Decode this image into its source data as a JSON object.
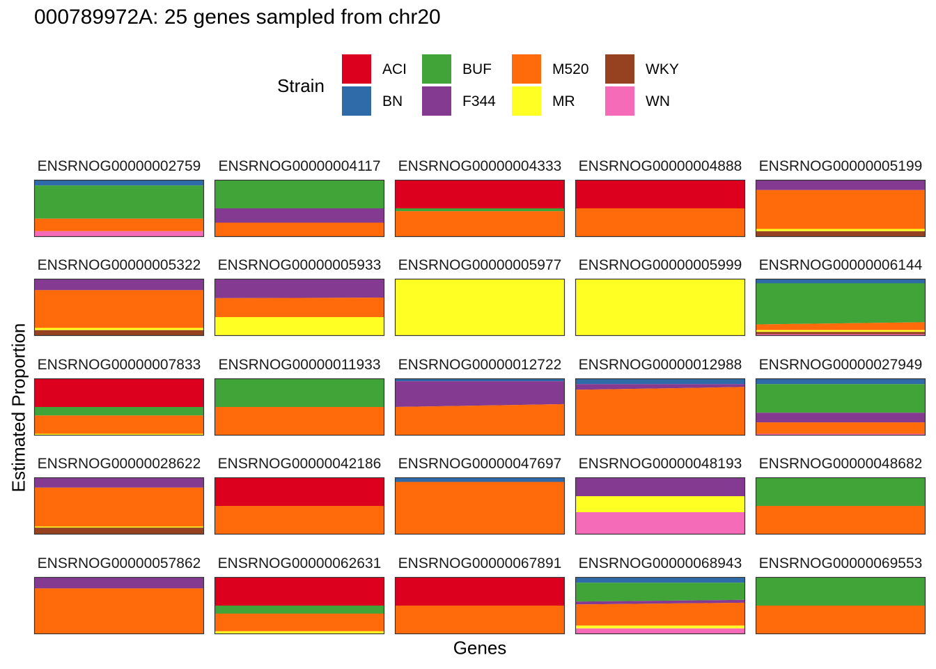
{
  "chart_data": {
    "type": "area",
    "title": "000789972A: 25 genes sampled from chr20",
    "xlabel": "Genes",
    "ylabel": "Estimated Proportion",
    "legend": {
      "title": "Strain",
      "position": "top",
      "entries": [
        {
          "name": "ACI",
          "color": "#DC001E"
        },
        {
          "name": "BN",
          "color": "#2E6BA8"
        },
        {
          "name": "BUF",
          "color": "#41A438"
        },
        {
          "name": "F344",
          "color": "#853A92"
        },
        {
          "name": "M520",
          "color": "#FF6A0A"
        },
        {
          "name": "MR",
          "color": "#FFFF24"
        },
        {
          "name": "WKY",
          "color": "#964120"
        },
        {
          "name": "WN",
          "color": "#F56BB8"
        }
      ]
    },
    "stack_order_top_to_bottom": [
      "BN",
      "ACI",
      "BUF",
      "F344",
      "M520",
      "MR",
      "WKY",
      "WN"
    ],
    "panels": [
      {
        "gene": "ENSRNOG00000002759",
        "start": {
          "BN": 0.1,
          "BUF": 0.58,
          "M520": 0.22,
          "WN": 0.1
        },
        "end": {
          "BN": 0.1,
          "BUF": 0.58,
          "M520": 0.22,
          "WN": 0.1
        }
      },
      {
        "gene": "ENSRNOG00000004117",
        "start": {
          "BUF": 0.5,
          "F344": 0.25,
          "M520": 0.25
        },
        "end": {
          "BUF": 0.5,
          "F344": 0.25,
          "M520": 0.25
        }
      },
      {
        "gene": "ENSRNOG00000004333",
        "start": {
          "ACI": 0.5,
          "BUF": 0.05,
          "M520": 0.45
        },
        "end": {
          "ACI": 0.5,
          "BUF": 0.05,
          "M520": 0.45
        }
      },
      {
        "gene": "ENSRNOG00000004888",
        "start": {
          "ACI": 0.5,
          "M520": 0.5
        },
        "end": {
          "ACI": 0.5,
          "M520": 0.5
        }
      },
      {
        "gene": "ENSRNOG00000005199",
        "start": {
          "F344": 0.18,
          "M520": 0.68,
          "MR": 0.04,
          "WKY": 0.1
        },
        "end": {
          "F344": 0.18,
          "M520": 0.68,
          "MR": 0.04,
          "WKY": 0.1
        }
      },
      {
        "gene": "ENSRNOG00000005322",
        "start": {
          "F344": 0.2,
          "M520": 0.66,
          "MR": 0.04,
          "WKY": 0.1
        },
        "end": {
          "F344": 0.2,
          "M520": 0.66,
          "MR": 0.04,
          "WKY": 0.1
        }
      },
      {
        "gene": "ENSRNOG00000005933",
        "start": {
          "F344": 0.34,
          "M520": 0.33,
          "MR": 0.33
        },
        "end": {
          "F344": 0.33,
          "M520": 0.34,
          "MR": 0.33
        }
      },
      {
        "gene": "ENSRNOG00000005977",
        "start": {
          "MR": 1.0
        },
        "end": {
          "MR": 1.0
        }
      },
      {
        "gene": "ENSRNOG00000005999",
        "start": {
          "MR": 1.0
        },
        "end": {
          "MR": 1.0
        }
      },
      {
        "gene": "ENSRNOG00000006144",
        "start": {
          "BN": 0.08,
          "BUF": 0.72,
          "M520": 0.1,
          "MR": 0.03,
          "WKY": 0.04,
          "WN": 0.03
        },
        "end": {
          "BN": 0.08,
          "BUF": 0.68,
          "M520": 0.14,
          "MR": 0.03,
          "WKY": 0.04,
          "WN": 0.03
        }
      },
      {
        "gene": "ENSRNOG00000007833",
        "start": {
          "ACI": 0.5,
          "BUF": 0.15,
          "M520": 0.32,
          "MR": 0.03
        },
        "end": {
          "ACI": 0.5,
          "BUF": 0.15,
          "M520": 0.32,
          "MR": 0.03
        }
      },
      {
        "gene": "ENSRNOG00000011933",
        "start": {
          "BUF": 0.5,
          "M520": 0.5
        },
        "end": {
          "BUF": 0.5,
          "M520": 0.5
        }
      },
      {
        "gene": "ENSRNOG00000012722",
        "start": {
          "BN": 0.05,
          "F344": 0.45,
          "M520": 0.5
        },
        "end": {
          "BN": 0.05,
          "F344": 0.4,
          "M520": 0.55
        }
      },
      {
        "gene": "ENSRNOG00000012988",
        "start": {
          "BN": 0.1,
          "F344": 0.1,
          "M520": 0.8
        },
        "end": {
          "BN": 0.1,
          "F344": 0.05,
          "M520": 0.85
        }
      },
      {
        "gene": "ENSRNOG00000027949",
        "start": {
          "BN": 0.1,
          "BUF": 0.5,
          "F344": 0.17,
          "M520": 0.2,
          "WN": 0.03
        },
        "end": {
          "BN": 0.1,
          "BUF": 0.5,
          "F344": 0.17,
          "M520": 0.2,
          "WN": 0.03
        }
      },
      {
        "gene": "ENSRNOG00000028622",
        "start": {
          "F344": 0.18,
          "M520": 0.68,
          "MR": 0.02,
          "WKY": 0.12
        },
        "end": {
          "F344": 0.18,
          "M520": 0.68,
          "MR": 0.02,
          "WKY": 0.12
        }
      },
      {
        "gene": "ENSRNOG00000042186",
        "start": {
          "ACI": 0.5,
          "M520": 0.5
        },
        "end": {
          "ACI": 0.5,
          "M520": 0.5
        }
      },
      {
        "gene": "ENSRNOG00000047697",
        "start": {
          "BN": 0.08,
          "M520": 0.92
        },
        "end": {
          "BN": 0.08,
          "M520": 0.92
        }
      },
      {
        "gene": "ENSRNOG00000048193",
        "start": {
          "F344": 0.33,
          "MR": 0.28,
          "WN": 0.39
        },
        "end": {
          "F344": 0.33,
          "MR": 0.28,
          "WN": 0.39
        }
      },
      {
        "gene": "ENSRNOG00000048682",
        "start": {
          "BUF": 0.5,
          "M520": 0.5
        },
        "end": {
          "BUF": 0.5,
          "M520": 0.5
        }
      },
      {
        "gene": "ENSRNOG00000057862",
        "start": {
          "F344": 0.2,
          "M520": 0.8
        },
        "end": {
          "F344": 0.2,
          "M520": 0.8
        }
      },
      {
        "gene": "ENSRNOG00000062631",
        "start": {
          "ACI": 0.5,
          "BUF": 0.14,
          "M520": 0.31,
          "MR": 0.05
        },
        "end": {
          "ACI": 0.5,
          "BUF": 0.14,
          "M520": 0.31,
          "MR": 0.05
        }
      },
      {
        "gene": "ENSRNOG00000067891",
        "start": {
          "ACI": 0.5,
          "M520": 0.5
        },
        "end": {
          "ACI": 0.5,
          "M520": 0.5
        }
      },
      {
        "gene": "ENSRNOG00000068943",
        "start": {
          "BN": 0.1,
          "BUF": 0.33,
          "F344": 0.05,
          "M520": 0.37,
          "MR": 0.05,
          "WN": 0.1
        },
        "end": {
          "BN": 0.1,
          "BUF": 0.3,
          "F344": 0.05,
          "M520": 0.4,
          "MR": 0.05,
          "WN": 0.1
        }
      },
      {
        "gene": "ENSRNOG00000069553",
        "start": {
          "BUF": 0.5,
          "M520": 0.5
        },
        "end": {
          "BUF": 0.5,
          "M520": 0.5
        }
      }
    ]
  }
}
